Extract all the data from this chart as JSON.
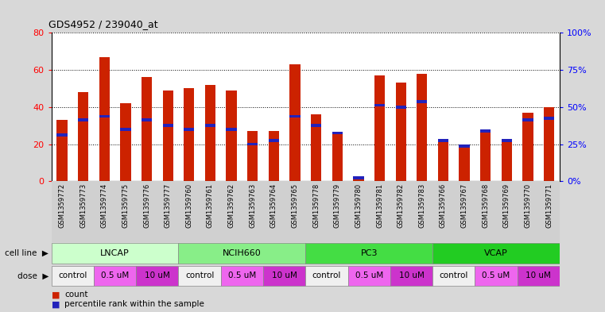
{
  "title": "GDS4952 / 239040_at",
  "samples": [
    "GSM1359772",
    "GSM1359773",
    "GSM1359774",
    "GSM1359775",
    "GSM1359776",
    "GSM1359777",
    "GSM1359760",
    "GSM1359761",
    "GSM1359762",
    "GSM1359763",
    "GSM1359764",
    "GSM1359765",
    "GSM1359778",
    "GSM1359779",
    "GSM1359780",
    "GSM1359781",
    "GSM1359782",
    "GSM1359783",
    "GSM1359766",
    "GSM1359767",
    "GSM1359768",
    "GSM1359769",
    "GSM1359770",
    "GSM1359771"
  ],
  "bar_heights": [
    33,
    48,
    67,
    42,
    56,
    49,
    50,
    52,
    49,
    27,
    27,
    63,
    36,
    26,
    2,
    57,
    53,
    58,
    23,
    19,
    28,
    22,
    37,
    40
  ],
  "blue_markers": [
    25,
    33,
    35,
    28,
    33,
    30,
    28,
    30,
    28,
    20,
    22,
    35,
    30,
    26,
    2,
    41,
    40,
    43,
    22,
    19,
    27,
    22,
    33,
    34
  ],
  "bar_color": "#cc2200",
  "blue_color": "#2222bb",
  "ylim_left": [
    0,
    80
  ],
  "ylim_right": [
    0,
    100
  ],
  "yticks_left": [
    0,
    20,
    40,
    60,
    80
  ],
  "yticks_right": [
    0,
    25,
    50,
    75,
    100
  ],
  "ytick_labels_left": [
    "0",
    "20",
    "40",
    "60",
    "80"
  ],
  "ytick_labels_right": [
    "0%",
    "25%",
    "50%",
    "75%",
    "100%"
  ],
  "cell_line_groups": [
    {
      "label": "LNCAP",
      "start": 0,
      "end": 6,
      "color": "#ccffcc"
    },
    {
      "label": "NCIH660",
      "start": 6,
      "end": 12,
      "color": "#88ee88"
    },
    {
      "label": "PC3",
      "start": 12,
      "end": 18,
      "color": "#44dd44"
    },
    {
      "label": "VCAP",
      "start": 18,
      "end": 24,
      "color": "#22cc22"
    }
  ],
  "dose_groups": [
    {
      "label": "control",
      "start": 0,
      "end": 2,
      "color": "#f0f0f0"
    },
    {
      "label": "0.5 uM",
      "start": 2,
      "end": 4,
      "color": "#ee66ee"
    },
    {
      "label": "10 uM",
      "start": 4,
      "end": 6,
      "color": "#cc33cc"
    },
    {
      "label": "control",
      "start": 6,
      "end": 8,
      "color": "#f0f0f0"
    },
    {
      "label": "0.5 uM",
      "start": 8,
      "end": 10,
      "color": "#ee66ee"
    },
    {
      "label": "10 uM",
      "start": 10,
      "end": 12,
      "color": "#cc33cc"
    },
    {
      "label": "control",
      "start": 12,
      "end": 14,
      "color": "#f0f0f0"
    },
    {
      "label": "0.5 uM",
      "start": 14,
      "end": 16,
      "color": "#ee66ee"
    },
    {
      "label": "10 uM",
      "start": 16,
      "end": 18,
      "color": "#cc33cc"
    },
    {
      "label": "control",
      "start": 18,
      "end": 20,
      "color": "#f0f0f0"
    },
    {
      "label": "0.5 uM",
      "start": 20,
      "end": 22,
      "color": "#ee66ee"
    },
    {
      "label": "10 uM",
      "start": 22,
      "end": 24,
      "color": "#cc33cc"
    }
  ],
  "bar_width": 0.5,
  "bg_color": "#d8d8d8",
  "plot_bg": "#ffffff",
  "label_bg": "#d0d0d0"
}
